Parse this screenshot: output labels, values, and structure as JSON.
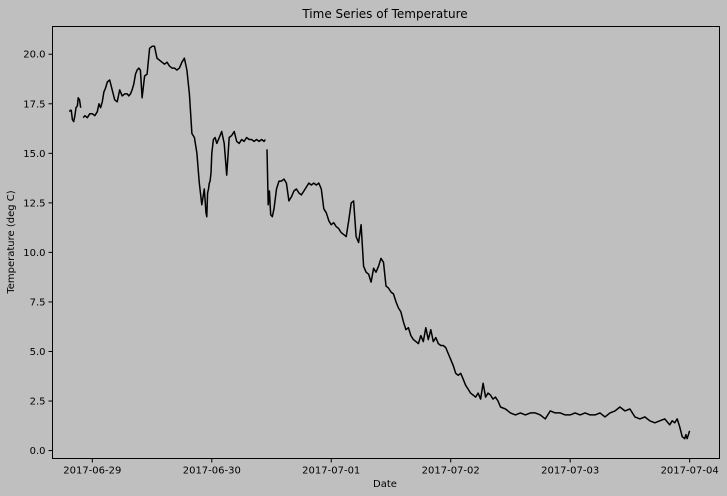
{
  "chart_data": {
    "type": "line",
    "title": "Time Series of Temperature",
    "xlabel": "Date",
    "ylabel": "Temperature (deg C)",
    "xlim": [
      "2017-06-28T16:00",
      "2017-07-04T06:00"
    ],
    "ylim": [
      -0.4,
      21.4
    ],
    "yticks": [
      0.0,
      2.5,
      5.0,
      7.5,
      10.0,
      12.5,
      15.0,
      17.5,
      20.0
    ],
    "ytick_labels": [
      "0.0",
      "2.5",
      "5.0",
      "7.5",
      "10.0",
      "12.5",
      "15.0",
      "17.5",
      "20.0"
    ],
    "xticks": [
      "2017-06-29",
      "2017-06-30",
      "2017-07-01",
      "2017-07-02",
      "2017-07-03",
      "2017-07-04"
    ],
    "grid": false,
    "background": "#bfbfbf",
    "line_color": "#000000",
    "series": [
      {
        "segments": [
          {
            "x": [
              "2017-06-28T19:25",
              "2017-06-28T19:38"
            ],
            "y": [
              17.1,
              17.2
            ]
          },
          {
            "x": [
              "2017-06-28T19:46",
              "2017-06-28T20:00",
              "2017-06-28T20:15",
              "2017-06-28T20:30",
              "2017-06-28T20:43",
              "2017-06-28T21:00",
              "2017-06-28T21:10",
              "2017-06-28T21:25",
              "2017-06-28T21:40"
            ],
            "y": [
              17.2,
              16.7,
              16.6,
              16.9,
              17.3,
              17.4,
              17.8,
              17.7,
              17.3
            ]
          },
          {
            "x": [
              "2017-06-28T22:10",
              "2017-06-28T22:30",
              "2017-06-28T23:00",
              "2017-06-28T23:30",
              "2017-06-29T00:00",
              "2017-06-29T00:30",
              "2017-06-29T01:00",
              "2017-06-29T01:20",
              "2017-06-29T01:40",
              "2017-06-29T02:00",
              "2017-06-29T02:20",
              "2017-06-29T02:40",
              "2017-06-29T03:00",
              "2017-06-29T03:30",
              "2017-06-29T04:00",
              "2017-06-29T04:30",
              "2017-06-29T05:00",
              "2017-06-29T05:30",
              "2017-06-29T06:00",
              "2017-06-29T06:30",
              "2017-06-29T07:00",
              "2017-06-29T07:20",
              "2017-06-29T07:40",
              "2017-06-29T08:00",
              "2017-06-29T08:20",
              "2017-06-29T08:40",
              "2017-06-29T09:00",
              "2017-06-29T09:20",
              "2017-06-29T09:40",
              "2017-06-29T10:00",
              "2017-06-29T10:30",
              "2017-06-29T11:00",
              "2017-06-29T11:30",
              "2017-06-29T12:00",
              "2017-06-29T12:30",
              "2017-06-29T13:00",
              "2017-06-29T13:30",
              "2017-06-29T14:00",
              "2017-06-29T14:30",
              "2017-06-29T15:00",
              "2017-06-29T15:30",
              "2017-06-29T16:00",
              "2017-06-29T16:30",
              "2017-06-29T17:00",
              "2017-06-29T17:30",
              "2017-06-29T18:00",
              "2017-06-29T18:30",
              "2017-06-29T19:00",
              "2017-06-29T19:30",
              "2017-06-29T20:00",
              "2017-06-29T20:30",
              "2017-06-29T21:00",
              "2017-06-29T21:30",
              "2017-06-29T22:00",
              "2017-06-29T22:30",
              "2017-06-29T22:50",
              "2017-06-29T23:00",
              "2017-06-29T23:10",
              "2017-06-29T23:20",
              "2017-06-29T23:30",
              "2017-06-29T23:40",
              "2017-06-29T23:50",
              "2017-06-30T00:00",
              "2017-06-30T00:20",
              "2017-06-30T00:40",
              "2017-06-30T01:00",
              "2017-06-30T01:30",
              "2017-06-30T02:00",
              "2017-06-30T02:30",
              "2017-06-30T03:00",
              "2017-06-30T03:30",
              "2017-06-30T04:00",
              "2017-06-30T04:30",
              "2017-06-30T05:00",
              "2017-06-30T05:30",
              "2017-06-30T06:00",
              "2017-06-30T06:30",
              "2017-06-30T07:00",
              "2017-06-30T07:30",
              "2017-06-30T08:00",
              "2017-06-30T08:30",
              "2017-06-30T09:00",
              "2017-06-30T09:30",
              "2017-06-30T10:00",
              "2017-06-30T10:30",
              "2017-06-30T10:45"
            ],
            "y": [
              16.8,
              16.9,
              16.8,
              17.0,
              17.0,
              16.9,
              17.1,
              17.5,
              17.3,
              17.6,
              18.1,
              18.3,
              18.6,
              18.7,
              18.2,
              17.7,
              17.6,
              18.2,
              17.9,
              18.0,
              18.0,
              17.9,
              18.0,
              18.2,
              18.5,
              19.0,
              19.2,
              19.3,
              19.2,
              17.8,
              18.9,
              19.0,
              20.3,
              20.4,
              20.4,
              19.8,
              19.7,
              19.6,
              19.5,
              19.6,
              19.4,
              19.3,
              19.3,
              19.2,
              19.3,
              19.6,
              19.8,
              19.2,
              18.0,
              16.0,
              15.8,
              15.0,
              13.5,
              12.4,
              13.2,
              12.0,
              11.8,
              13.0,
              13.2,
              13.5,
              13.6,
              14.0,
              15.0,
              15.7,
              15.8,
              15.5,
              15.8,
              16.1,
              15.5,
              13.9,
              15.8,
              15.9,
              16.1,
              15.6,
              15.5,
              15.7,
              15.6,
              15.8,
              15.7,
              15.7,
              15.6,
              15.7,
              15.6,
              15.7,
              15.6,
              15.7
            ]
          },
          {
            "x": [
              "2017-06-30T11:05",
              "2017-06-30T11:20",
              "2017-06-30T11:35",
              "2017-06-30T11:50",
              "2017-06-30T12:10",
              "2017-06-30T12:30",
              "2017-06-30T13:00",
              "2017-06-30T13:30",
              "2017-06-30T14:00",
              "2017-06-30T14:30",
              "2017-06-30T15:00",
              "2017-06-30T15:30",
              "2017-06-30T16:00",
              "2017-06-30T16:30",
              "2017-06-30T17:00",
              "2017-06-30T17:30",
              "2017-06-30T18:00",
              "2017-06-30T18:30",
              "2017-06-30T19:00",
              "2017-06-30T19:30",
              "2017-06-30T20:00",
              "2017-06-30T20:30",
              "2017-06-30T21:00",
              "2017-06-30T21:30",
              "2017-06-30T22:00",
              "2017-06-30T22:30",
              "2017-06-30T23:00",
              "2017-06-30T23:30",
              "2017-07-01T00:00",
              "2017-07-01T00:30",
              "2017-07-01T01:00",
              "2017-07-01T01:30",
              "2017-07-01T02:00",
              "2017-07-01T02:30",
              "2017-07-01T03:00",
              "2017-07-01T03:30",
              "2017-07-01T04:00",
              "2017-07-01T04:30",
              "2017-07-01T05:00",
              "2017-07-01T05:30",
              "2017-07-01T06:00",
              "2017-07-01T06:30",
              "2017-07-01T07:00",
              "2017-07-01T07:30",
              "2017-07-01T08:00",
              "2017-07-01T08:30",
              "2017-07-01T09:00",
              "2017-07-01T09:30",
              "2017-07-01T10:00",
              "2017-07-01T10:30",
              "2017-07-01T11:00",
              "2017-07-01T11:30",
              "2017-07-01T12:00",
              "2017-07-01T12:30",
              "2017-07-01T13:00",
              "2017-07-01T13:30",
              "2017-07-01T14:00",
              "2017-07-01T14:30",
              "2017-07-01T15:00",
              "2017-07-01T15:30",
              "2017-07-01T16:00",
              "2017-07-01T16:30",
              "2017-07-01T17:00",
              "2017-07-01T17:30",
              "2017-07-01T18:00",
              "2017-07-01T18:30",
              "2017-07-01T19:00",
              "2017-07-01T19:30",
              "2017-07-01T20:00",
              "2017-07-01T20:30",
              "2017-07-01T21:00",
              "2017-07-01T21:30",
              "2017-07-01T22:00",
              "2017-07-01T22:30",
              "2017-07-01T23:00",
              "2017-07-01T23:30",
              "2017-07-02T00:00",
              "2017-07-02T00:30",
              "2017-07-02T01:00",
              "2017-07-02T01:30",
              "2017-07-02T02:00",
              "2017-07-02T02:30",
              "2017-07-02T03:00",
              "2017-07-02T03:30",
              "2017-07-02T04:00",
              "2017-07-02T04:30",
              "2017-07-02T05:00",
              "2017-07-02T05:30",
              "2017-07-02T06:00",
              "2017-07-02T06:30",
              "2017-07-02T07:00",
              "2017-07-02T07:30",
              "2017-07-02T08:00",
              "2017-07-02T08:30",
              "2017-07-02T09:00",
              "2017-07-02T09:30",
              "2017-07-02T10:00",
              "2017-07-02T11:00",
              "2017-07-02T12:00",
              "2017-07-02T13:00",
              "2017-07-02T14:00",
              "2017-07-02T15:00",
              "2017-07-02T16:00",
              "2017-07-02T17:00",
              "2017-07-02T18:00",
              "2017-07-02T19:00",
              "2017-07-02T20:00",
              "2017-07-02T21:00",
              "2017-07-02T22:00",
              "2017-07-02T23:00",
              "2017-07-03T00:00",
              "2017-07-03T01:00",
              "2017-07-03T02:00",
              "2017-07-03T03:00",
              "2017-07-03T04:00",
              "2017-07-03T05:00",
              "2017-07-03T06:00",
              "2017-07-03T07:00",
              "2017-07-03T08:00",
              "2017-07-03T09:00",
              "2017-07-03T10:00",
              "2017-07-03T11:00",
              "2017-07-03T12:00",
              "2017-07-03T13:00",
              "2017-07-03T14:00",
              "2017-07-03T15:00",
              "2017-07-03T16:00",
              "2017-07-03T17:00",
              "2017-07-03T18:00",
              "2017-07-03T19:00",
              "2017-07-03T20:00",
              "2017-07-03T20:30",
              "2017-07-03T21:00",
              "2017-07-03T21:30",
              "2017-07-03T22:00",
              "2017-07-03T22:30",
              "2017-07-03T23:00",
              "2017-07-03T23:15",
              "2017-07-03T23:30",
              "2017-07-03T23:45",
              "2017-07-04T00:00"
            ],
            "y": [
              15.2,
              12.4,
              13.1,
              11.9,
              11.8,
              12.2,
              13.2,
              13.6,
              13.6,
              13.7,
              13.5,
              12.6,
              12.8,
              13.1,
              13.2,
              13.0,
              12.9,
              13.1,
              13.3,
              13.5,
              13.4,
              13.5,
              13.4,
              13.5,
              13.2,
              12.2,
              12.0,
              11.6,
              11.4,
              11.5,
              11.3,
              11.2,
              11.0,
              10.9,
              10.8,
              11.6,
              12.5,
              12.6,
              10.8,
              10.5,
              11.4,
              9.3,
              9.0,
              8.9,
              8.5,
              9.2,
              9.0,
              9.3,
              9.7,
              9.5,
              8.3,
              8.2,
              8.0,
              7.9,
              7.5,
              7.2,
              7.0,
              6.5,
              6.1,
              6.2,
              5.8,
              5.6,
              5.5,
              5.4,
              5.8,
              5.5,
              6.2,
              5.6,
              6.1,
              5.5,
              5.7,
              5.4,
              5.3,
              5.3,
              5.2,
              4.9,
              4.6,
              4.3,
              3.9,
              3.8,
              3.9,
              3.6,
              3.3,
              3.1,
              2.9,
              2.8,
              2.7,
              2.9,
              2.6,
              3.4,
              2.7,
              2.9,
              2.8,
              2.6,
              2.7,
              2.5,
              2.2,
              2.1,
              1.9,
              1.8,
              1.9,
              1.8,
              1.9,
              1.9,
              1.8,
              1.6,
              2.0,
              1.9,
              1.9,
              1.8,
              1.8,
              1.9,
              1.8,
              1.9,
              1.8,
              1.8,
              1.9,
              1.7,
              1.9,
              2.0,
              2.2,
              2.0,
              2.1,
              1.7,
              1.6,
              1.7,
              1.5,
              1.4,
              1.5,
              1.6,
              1.3,
              1.5,
              1.4,
              1.6,
              1.2,
              0.7,
              0.6,
              0.8,
              0.6,
              0.8,
              1.0
            ]
          }
        ]
      }
    ]
  }
}
